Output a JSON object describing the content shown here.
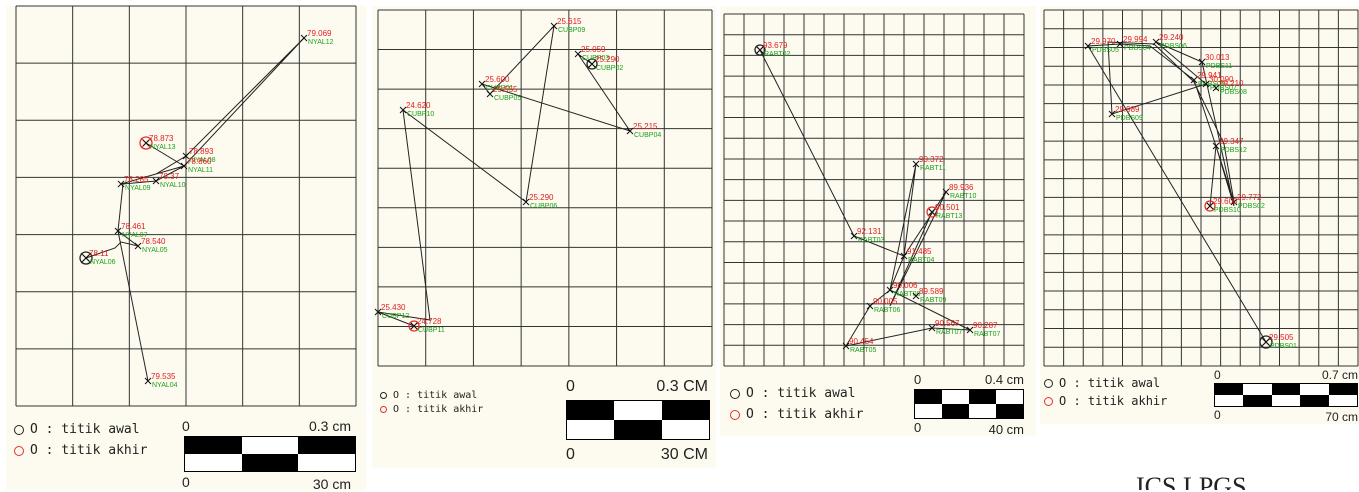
{
  "panels": [
    {
      "id": "nyal",
      "points": [
        {
          "val": "79.069",
          "name": "NYAL12"
        },
        {
          "val": "78.873",
          "name": "NYAL13"
        },
        {
          "val": "78.893",
          "name": "NYAL08"
        },
        {
          "val": "78.860",
          "name": "NYAL11"
        },
        {
          "val": "78.285",
          "name": "NYAL09"
        },
        {
          "val": "78.37",
          "name": "NYAL10"
        },
        {
          "val": "78.461",
          "name": "NYAL07"
        },
        {
          "val": "78.540",
          "name": "NYAL05"
        },
        {
          "val": "78.11",
          "name": "NYAL06"
        },
        {
          "val": "79.535",
          "name": "NYAL04"
        }
      ],
      "legend": {
        "start": "O : titik awal",
        "end": "O : titik akhir"
      },
      "scale": {
        "top_left": "0",
        "top_right": "0.3 cm",
        "bottom_left": "0",
        "bottom_right": "30 cm"
      }
    },
    {
      "id": "cubp",
      "points": [
        {
          "val": "25.615",
          "name": "CUBP09"
        },
        {
          "val": "25.059",
          "name": "CUBP03"
        },
        {
          "val": "25.290",
          "name": "CUBP02"
        },
        {
          "val": "25.600",
          "name": "CUBP01"
        },
        {
          "val": "25.555",
          "name": "CUBP05"
        },
        {
          "val": "24.620",
          "name": "CUBP10"
        },
        {
          "val": "25.215",
          "name": "CUBP04"
        },
        {
          "val": "25.290",
          "name": "CUBP06"
        },
        {
          "val": "25.430",
          "name": "CUBP12"
        },
        {
          "val": "24.728",
          "name": "CUBP11"
        }
      ],
      "legend": {
        "start": "O : titik awal",
        "end": "O : titik akhir"
      },
      "scale": {
        "top_left": "0",
        "top_right": "0.3 CM",
        "bottom_left": "0",
        "bottom_right": "30 CM"
      }
    },
    {
      "id": "rabt",
      "points": [
        {
          "val": "93.679",
          "name": "RABT02"
        },
        {
          "val": "90.372",
          "name": "RABT11"
        },
        {
          "val": "89.936",
          "name": "RABT10"
        },
        {
          "val": "90.501",
          "name": "RABT13"
        },
        {
          "val": "92.131",
          "name": "RABT03"
        },
        {
          "val": "91.485",
          "name": "RABT04"
        },
        {
          "val": "90.006",
          "name": "RABT08"
        },
        {
          "val": "89.589",
          "name": "RABT09"
        },
        {
          "val": "90.005",
          "name": "RABT06"
        },
        {
          "val": "90.567",
          "name": "RABT07"
        },
        {
          "val": "90.287",
          "name": "RABT07"
        },
        {
          "val": "90.454",
          "name": "RABT05"
        }
      ],
      "legend": {
        "start": "O : titik awal",
        "end": "O : titik akhir"
      },
      "scale": {
        "top_left": "0",
        "top_right": "0.4 cm",
        "bottom_left": "0",
        "bottom_right": "40 cm"
      }
    },
    {
      "id": "pdbs",
      "points": [
        {
          "val": "30.013",
          "name": "PDBS11"
        },
        {
          "val": "29.994",
          "name": "PDBS04"
        },
        {
          "val": "29.970",
          "name": "PDBS05"
        },
        {
          "val": "29.240",
          "name": "PDBS06"
        },
        {
          "val": "29.941",
          "name": "PDBS03"
        },
        {
          "val": "30.090",
          "name": "PDBS07"
        },
        {
          "val": "29.210",
          "name": "PDBS08"
        },
        {
          "val": "29.989",
          "name": "PDBS09"
        },
        {
          "val": "29.347",
          "name": "PDBS12"
        },
        {
          "val": "29.772",
          "name": "PDBS02"
        },
        {
          "val": "29.600",
          "name": "PDBS10"
        },
        {
          "val": "29.505",
          "name": "PDBS01"
        }
      ],
      "legend": {
        "start": "O : titik awal",
        "end": "O : titik akhir"
      },
      "scale": {
        "top_left": "0",
        "top_right": "0.7 cm",
        "bottom_left": "0",
        "bottom_right": "70 cm"
      }
    }
  ],
  "watermark": "ICS LPGS",
  "colors": {
    "value": "#e02020",
    "name": "#1aa01a",
    "start_marker": "#222222",
    "end_marker": "#e03030"
  }
}
